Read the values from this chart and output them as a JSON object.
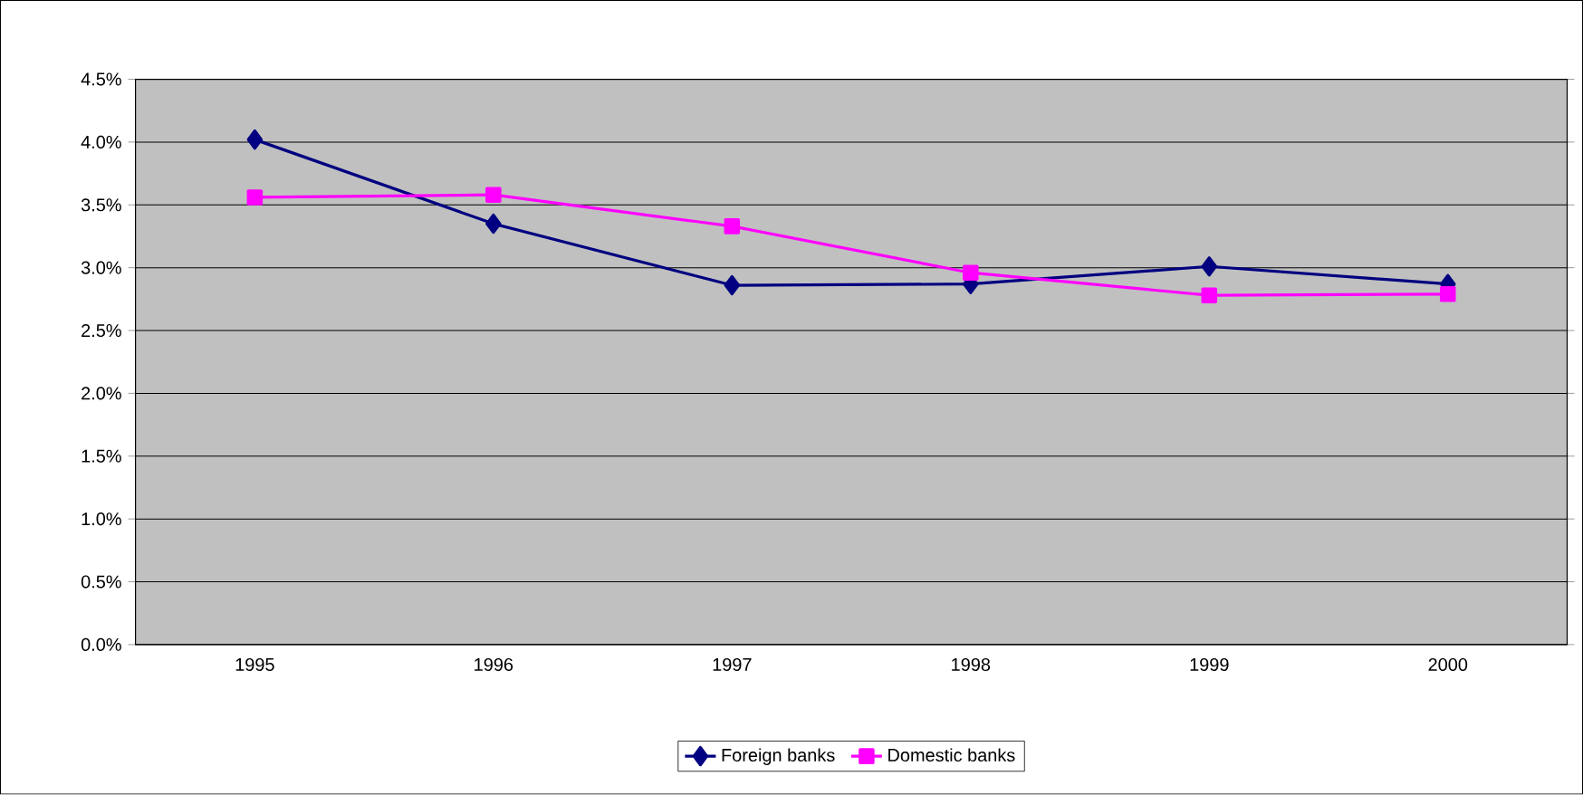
{
  "chart_data": {
    "type": "line",
    "categories": [
      "1995",
      "1996",
      "1997",
      "1998",
      "1999",
      "2000"
    ],
    "series": [
      {
        "name": "Foreign banks",
        "color": "#000080",
        "marker": "diamond",
        "values": [
          4.02,
          3.35,
          2.86,
          2.87,
          3.01,
          2.87
        ]
      },
      {
        "name": "Domestic banks",
        "color": "#ff00ff",
        "marker": "square",
        "values": [
          3.56,
          3.58,
          3.33,
          2.96,
          2.78,
          2.79
        ]
      }
    ],
    "ylim": [
      0,
      4.5
    ],
    "yticks": [
      {
        "value": 0,
        "label": "0.0%"
      },
      {
        "value": 0.5,
        "label": "0.5%"
      },
      {
        "value": 1,
        "label": "1.0%"
      },
      {
        "value": 1.5,
        "label": "1.5%"
      },
      {
        "value": 2,
        "label": "2.0%"
      },
      {
        "value": 2.5,
        "label": "2.5%"
      },
      {
        "value": 3,
        "label": "3.0%"
      },
      {
        "value": 3.5,
        "label": "3.5%"
      },
      {
        "value": 4,
        "label": "4.0%"
      },
      {
        "value": 4.5,
        "label": "4.5%"
      }
    ],
    "grid": "y",
    "legend": "bottom",
    "line_style": "solid"
  }
}
